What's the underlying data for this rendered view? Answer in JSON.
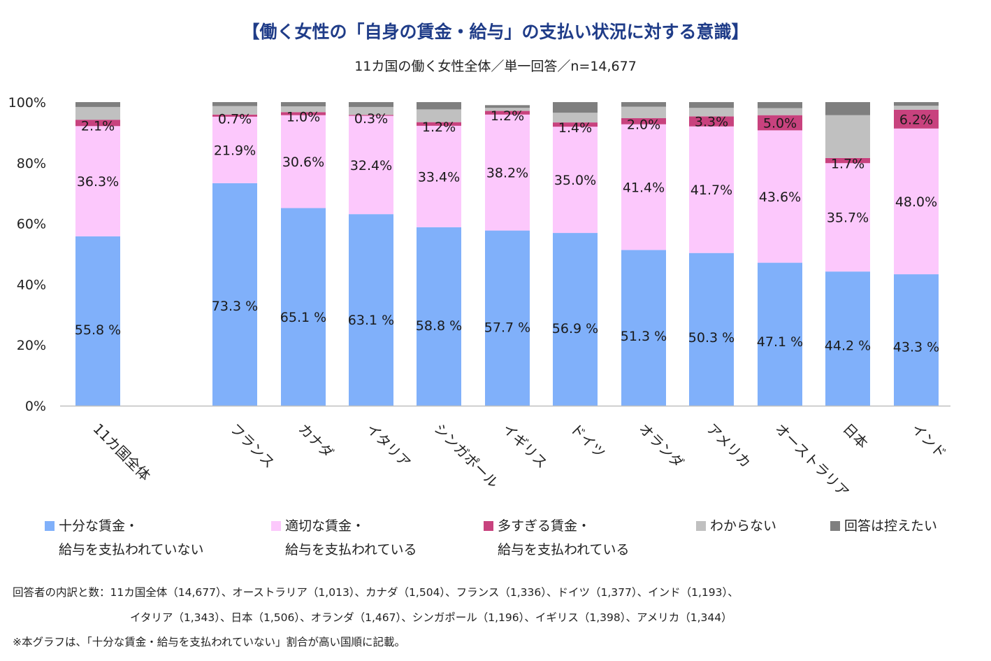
{
  "title": "【働く女性の「自身の賃金・給与」の支払い状況に対する意識】",
  "subtitle": "11カ国の働く女性全体／単一回答／n=14,677",
  "colors": {
    "insufficient": "#80b0fa",
    "appropriate": "#fcc8fc",
    "excessive": "#c8427e",
    "unknown": "#c0c0c0",
    "no_answer": "#7f7f7f"
  },
  "legend": [
    {
      "key": "insufficient",
      "line1": "十分な賃金・",
      "line2": "給与を支払われていない"
    },
    {
      "key": "appropriate",
      "line1": "適切な賃金・",
      "line2": "給与を支払われている"
    },
    {
      "key": "excessive",
      "line1": "多すぎる賃金・",
      "line2": "給与を支払われている"
    },
    {
      "key": "unknown",
      "line1": "わからない",
      "line2": ""
    },
    {
      "key": "no_answer",
      "line1": "回答は控えたい",
      "line2": ""
    }
  ],
  "chart_data": {
    "type": "bar",
    "stacked": true,
    "ylim": [
      0,
      100
    ],
    "yticks": [
      "0%",
      "20%",
      "40%",
      "60%",
      "80%",
      "100%"
    ],
    "categories": [
      "11カ国全体",
      "フランス",
      "カナダ",
      "イタリア",
      "シンガポール",
      "イギリス",
      "ドイツ",
      "オランダ",
      "アメリカ",
      "オーストラリア",
      "日本",
      "インド"
    ],
    "series": [
      {
        "name": "十分な賃金・給与を支払われていない",
        "key": "insufficient",
        "values": [
          55.8,
          73.3,
          65.1,
          63.1,
          58.8,
          57.7,
          56.9,
          51.3,
          50.3,
          47.1,
          44.2,
          43.3
        ],
        "labels": [
          "55.8 %",
          "73.3 %",
          "65.1 %",
          "63.1 %",
          "58.8 %",
          "57.7 %",
          "56.9 %",
          "51.3 %",
          "50.3 %",
          "47.1 %",
          "44.2 %",
          "43.3 %"
        ]
      },
      {
        "name": "適切な賃金・給与を支払われている",
        "key": "appropriate",
        "values": [
          36.3,
          21.9,
          30.6,
          32.4,
          33.4,
          38.2,
          35.0,
          41.4,
          41.7,
          43.6,
          35.7,
          48.0
        ],
        "labels": [
          "36.3%",
          "21.9%",
          "30.6%",
          "32.4%",
          "33.4%",
          "38.2%",
          "35.0%",
          "41.4%",
          "41.7%",
          "43.6%",
          "35.7%",
          "48.0%"
        ]
      },
      {
        "name": "多すぎる賃金・給与を支払われている",
        "key": "excessive",
        "values": [
          2.1,
          0.7,
          1.0,
          0.3,
          1.2,
          1.2,
          1.4,
          2.0,
          3.3,
          5.0,
          1.7,
          6.2
        ],
        "labels": [
          "2.1%",
          "0.7%",
          "1.0%",
          "0.3%",
          "1.2%",
          "1.2%",
          "1.4%",
          "2.0%",
          "3.3%",
          "5.0%",
          "1.7%",
          "6.2%"
        ]
      },
      {
        "name": "わからない",
        "key": "unknown",
        "values": [
          4.2,
          2.8,
          1.9,
          2.6,
          4.2,
          1.0,
          3.2,
          3.8,
          2.8,
          2.3,
          14.1,
          1.3
        ]
      },
      {
        "name": "回答は控えたい",
        "key": "no_answer",
        "values": [
          1.6,
          1.3,
          1.4,
          1.6,
          2.4,
          0.9,
          3.5,
          1.5,
          1.9,
          2.0,
          4.3,
          1.2
        ]
      }
    ]
  },
  "notes": {
    "line1": "回答者の内訳と数：11カ国全体（14,677）、オーストラリア（1,013）、カナダ（1,504）、フランス（1,336）、ドイツ（1,377）、インド（1,193）、",
    "line2": "イタリア（1,343）、日本（1,506）、オランダ（1,467）、シンガポール（1,196）、イギリス（1,398）、アメリカ（1,344）",
    "line3": "※本グラフは、「十分な賃金・給与を支払われていない」割合が高い国順に記載。"
  }
}
